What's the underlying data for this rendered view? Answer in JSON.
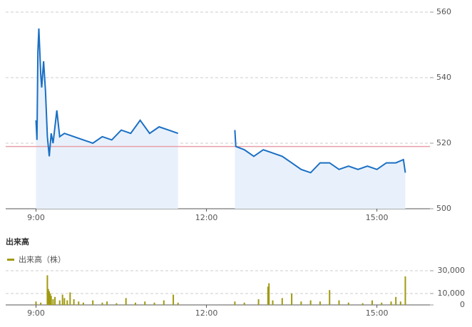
{
  "chart_data": [
    {
      "type": "line",
      "color": "#1a6fc4",
      "fill": "#e8f1fb",
      "x": [
        "9:00",
        "9:01",
        "9:02",
        "9:03",
        "9:05",
        "9:06",
        "9:08",
        "9:10",
        "9:12",
        "9:14",
        "9:16",
        "9:18",
        "9:22",
        "9:25",
        "9:30",
        "9:40",
        "9:50",
        "10:00",
        "10:10",
        "10:20",
        "10:30",
        "10:40",
        "10:50",
        "11:00",
        "11:10",
        "11:20",
        "11:30",
        "12:00",
        "12:30",
        "12:31",
        "12:40",
        "12:50",
        "13:00",
        "13:10",
        "13:20",
        "13:30",
        "13:40",
        "13:50",
        "14:00",
        "14:10",
        "14:20",
        "14:30",
        "14:40",
        "14:50",
        "15:00",
        "15:10",
        "15:20",
        "15:28",
        "15:30"
      ],
      "values": [
        527,
        521,
        548,
        555,
        541,
        537,
        545,
        536,
        522,
        516,
        523,
        520,
        530,
        522,
        523,
        522,
        521,
        520,
        522,
        521,
        524,
        523,
        527,
        523,
        525,
        524,
        523,
        null,
        524,
        519,
        518,
        516,
        518,
        517,
        516,
        514,
        512,
        511,
        514,
        514,
        512,
        513,
        512,
        513,
        512,
        514,
        514,
        515,
        511
      ],
      "reference_line": 519,
      "reference_color": "#e8a0a8",
      "xlim": [
        "8:28",
        "15:56"
      ],
      "xticks": [
        "9:00",
        "12:00",
        "15:00"
      ],
      "ylim": [
        500,
        560
      ],
      "yticks": [
        500,
        520,
        540,
        560
      ],
      "grid": true
    },
    {
      "type": "bar",
      "title": "出来高",
      "series": [
        {
          "name": "出来高（株）",
          "color": "#a09a10",
          "x": [
            "9:00",
            "9:05",
            "9:12",
            "9:13",
            "9:14",
            "9:15",
            "9:16",
            "9:18",
            "9:20",
            "9:25",
            "9:28",
            "9:30",
            "9:33",
            "9:36",
            "9:40",
            "9:45",
            "9:50",
            "10:00",
            "10:10",
            "10:15",
            "10:25",
            "10:35",
            "10:45",
            "10:55",
            "11:05",
            "11:15",
            "11:25",
            "11:30",
            "12:30",
            "12:40",
            "12:55",
            "13:05",
            "13:06",
            "13:10",
            "13:20",
            "13:30",
            "13:40",
            "13:50",
            "14:00",
            "14:10",
            "14:20",
            "14:30",
            "14:45",
            "14:55",
            "15:05",
            "15:15",
            "15:20",
            "15:25",
            "15:30"
          ],
          "values": [
            3000,
            2000,
            26000,
            14000,
            12000,
            10000,
            8000,
            5000,
            7000,
            4000,
            9000,
            6000,
            4000,
            11000,
            5000,
            3000,
            2000,
            4000,
            2000,
            3000,
            1500,
            6000,
            2000,
            3000,
            2000,
            4000,
            9000,
            2000,
            3000,
            2000,
            5000,
            16000,
            19000,
            4000,
            6000,
            10000,
            3000,
            4000,
            3000,
            13000,
            4000,
            2000,
            1500,
            4000,
            2000,
            3000,
            7000,
            3000,
            25000
          ]
        }
      ],
      "xlim": [
        "8:28",
        "15:56"
      ],
      "xticks": [
        "9:00",
        "12:00",
        "15:00"
      ],
      "ylim": [
        0,
        35000
      ],
      "yticks": [
        0,
        {
          "value": 10000,
          "label": "10,000"
        },
        {
          "value": 30000,
          "label": "30,000"
        }
      ],
      "grid": true
    }
  ]
}
